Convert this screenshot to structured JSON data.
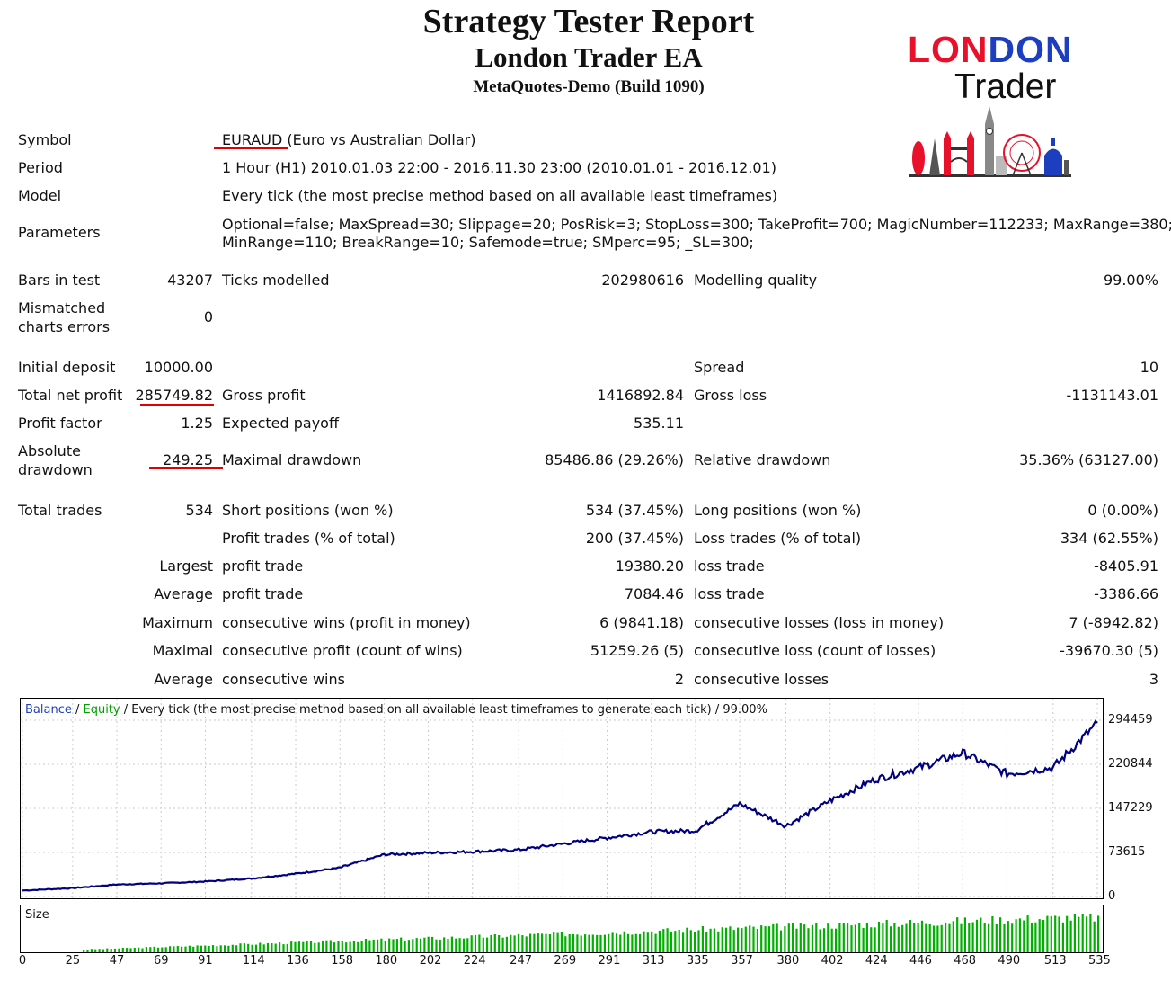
{
  "header": {
    "title": "Strategy Tester Report",
    "subtitle": "London Trader EA",
    "server": "MetaQuotes-Demo (Build 1090)"
  },
  "logo": {
    "lon": "LON",
    "d": "D",
    "on": "ON",
    "trader": "Trader",
    "red": "#e8102a",
    "blue": "#1d3fbf"
  },
  "info": {
    "symbol_label": "Symbol",
    "symbol_value": "EURAUD (Euro vs Australian Dollar)",
    "period_label": "Period",
    "period_value": "1 Hour (H1) 2010.01.03 22:00 - 2016.11.30 23:00 (2010.01.01 - 2016.12.01)",
    "model_label": "Model",
    "model_value": "Every tick (the most precise method based on all available least timeframes)",
    "parameters_label": "Parameters",
    "parameters_line1": "Optional=false; MaxSpread=30; Slippage=20; PosRisk=3; StopLoss=300; TakeProfit=700; MagicNumber=112233; MaxRange=380;",
    "parameters_line2": "MinRange=110; BreakRange=10; Safemode=true; SMperc=95; _SL=300;"
  },
  "stats": {
    "bars_label": "Bars in test",
    "bars_value": "43207",
    "ticks_label": "Ticks modelled",
    "ticks_value": "202980616",
    "quality_label": "Modelling quality",
    "quality_value": "99.00%",
    "mismatch_label_1": "Mismatched",
    "mismatch_label_2": "charts errors",
    "mismatch_value": "0",
    "deposit_label": "Initial deposit",
    "deposit_value": "10000.00",
    "spread_label": "Spread",
    "spread_value": "10",
    "netprofit_label": "Total net profit",
    "netprofit_value": "285749.82",
    "grossprofit_label": "Gross profit",
    "grossprofit_value": "1416892.84",
    "grossloss_label": "Gross loss",
    "grossloss_value": "-1131143.01",
    "pf_label": "Profit factor",
    "pf_value": "1.25",
    "payoff_label": "Expected payoff",
    "payoff_value": "535.11",
    "absdd_label_1": "Absolute",
    "absdd_label_2": "drawdown",
    "absdd_value": "249.25",
    "maxdd_label": "Maximal drawdown",
    "maxdd_value": "85486.86 (29.26%)",
    "reldd_label": "Relative drawdown",
    "reldd_value": "35.36% (63127.00)",
    "trades_label": "Total trades",
    "trades_value": "534",
    "short_label": "Short positions (won %)",
    "short_value": "534 (37.45%)",
    "long_label": "Long positions (won %)",
    "long_value": "0 (0.00%)",
    "profit_trades_label": "Profit trades (% of total)",
    "profit_trades_value": "200 (37.45%)",
    "loss_trades_label": "Loss trades (% of total)",
    "loss_trades_value": "334 (62.55%)",
    "largest_label": "Largest",
    "largest_profit_label": "profit trade",
    "largest_profit_value": "19380.20",
    "largest_loss_label": "loss trade",
    "largest_loss_value": "-8405.91",
    "average_label": "Average",
    "average_profit_label": "profit trade",
    "average_profit_value": "7084.46",
    "average_loss_label": "loss trade",
    "average_loss_value": "-3386.66",
    "maximum_label": "Maximum",
    "max_wins_label": "consecutive wins (profit in money)",
    "max_wins_value": "6 (9841.18)",
    "max_losses_label": "consecutive losses (loss in money)",
    "max_losses_value": "7 (-8942.82)",
    "maximal_label": "Maximal",
    "maximal_profit_label": "consecutive profit (count of wins)",
    "maximal_profit_value": "51259.26 (5)",
    "maximal_loss_label": "consecutive loss (count of losses)",
    "maximal_loss_value": "-39670.30 (5)",
    "avg_cons_label": "Average",
    "avg_wins_label": "consecutive wins",
    "avg_wins_value": "2",
    "avg_losses_label": "consecutive losses",
    "avg_losses_value": "3"
  },
  "chart_data": {
    "type": "line",
    "legend_balance": "Balance",
    "legend_sep1": " / ",
    "legend_equity": "Equity",
    "legend_rest": " / Every tick (the most precise method based on all available least timeframes to generate each tick) / 99.00%",
    "balance_color": "#000080",
    "equity_color": "#00a000",
    "size_color": "#00b000",
    "size_label": "Size",
    "ylim": [
      0,
      294459
    ],
    "yticks": [
      "294459",
      "220844",
      "147229",
      "73615",
      "0"
    ],
    "xticks": [
      "0",
      "25",
      "47",
      "69",
      "91",
      "114",
      "136",
      "158",
      "180",
      "202",
      "224",
      "247",
      "269",
      "291",
      "313",
      "335",
      "357",
      "380",
      "402",
      "424",
      "446",
      "468",
      "490",
      "513",
      "535"
    ],
    "x": [
      0,
      25,
      47,
      69,
      91,
      114,
      136,
      158,
      180,
      202,
      224,
      247,
      269,
      291,
      313,
      335,
      357,
      380,
      402,
      424,
      446,
      468,
      490,
      513,
      535
    ],
    "series": [
      {
        "name": "Balance",
        "values": [
          10000,
          14000,
          20000,
          22000,
          25000,
          30000,
          38000,
          48000,
          70000,
          73000,
          75000,
          78000,
          88000,
          98000,
          108000,
          110000,
          155000,
          118000,
          160000,
          195000,
          215000,
          240000,
          205000,
          215000,
          290000
        ]
      }
    ]
  }
}
